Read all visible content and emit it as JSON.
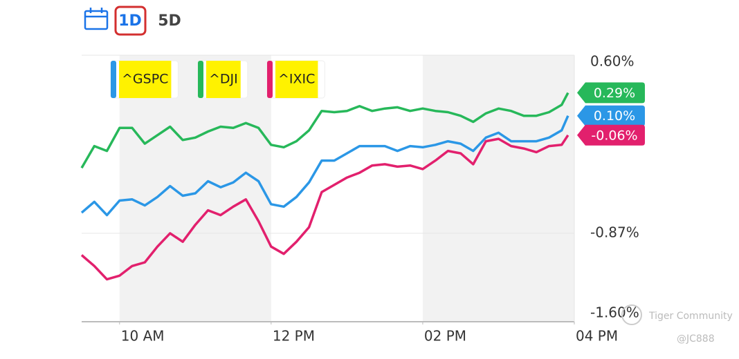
{
  "toolbar": {
    "ranges": [
      "1D",
      "5D"
    ],
    "selected": 0
  },
  "watermark": {
    "brand": "Tiger Community",
    "author": "@JC888"
  },
  "chart_data": {
    "type": "line",
    "x": [
      570,
      580,
      590,
      600,
      610,
      620,
      630,
      640,
      650,
      660,
      670,
      680,
      690,
      700,
      710,
      720,
      730,
      740,
      750,
      760,
      770,
      780,
      790,
      800,
      810,
      820,
      830,
      840,
      850,
      860,
      870,
      880,
      890,
      900,
      910,
      920,
      930,
      940,
      950,
      955
    ],
    "xlim": [
      570,
      960
    ],
    "xticks": [
      {
        "value": 600,
        "label": "10 AM"
      },
      {
        "value": 720,
        "label": "12 PM"
      },
      {
        "value": 840,
        "label": "02 PM"
      },
      {
        "value": 960,
        "label": "04 PM"
      }
    ],
    "ylim": [
      -1.6,
      0.6
    ],
    "yticks": [
      {
        "value": 0.6,
        "label": "0.60%"
      },
      {
        "value": -0.87,
        "label": "-0.87%"
      },
      {
        "value": -1.6,
        "label": "-1.60%"
      }
    ],
    "grid": true,
    "series": [
      {
        "name": "^GSPC",
        "color": "#2b97e6",
        "end_label": "0.10%",
        "values": [
          -0.7,
          -0.61,
          -0.72,
          -0.6,
          -0.59,
          -0.64,
          -0.57,
          -0.48,
          -0.56,
          -0.54,
          -0.44,
          -0.49,
          -0.45,
          -0.37,
          -0.44,
          -0.63,
          -0.65,
          -0.57,
          -0.45,
          -0.27,
          -0.27,
          -0.21,
          -0.15,
          -0.15,
          -0.15,
          -0.19,
          -0.15,
          -0.16,
          -0.14,
          -0.11,
          -0.13,
          -0.19,
          -0.08,
          -0.04,
          -0.11,
          -0.11,
          -0.11,
          -0.08,
          -0.02,
          0.1
        ]
      },
      {
        "name": "^DJI",
        "color": "#27b85a",
        "end_label": "0.29%",
        "values": [
          -0.33,
          -0.15,
          -0.19,
          0.0,
          0.0,
          -0.13,
          -0.06,
          0.01,
          -0.1,
          -0.08,
          -0.03,
          0.01,
          0.0,
          0.04,
          0.0,
          -0.14,
          -0.16,
          -0.11,
          -0.02,
          0.14,
          0.13,
          0.14,
          0.18,
          0.14,
          0.16,
          0.17,
          0.14,
          0.16,
          0.14,
          0.13,
          0.1,
          0.05,
          0.12,
          0.16,
          0.14,
          0.1,
          0.1,
          0.13,
          0.19,
          0.29
        ]
      },
      {
        "name": "^IXIC",
        "color": "#e2206d",
        "end_label": "-0.06%",
        "values": [
          -1.05,
          -1.14,
          -1.25,
          -1.22,
          -1.14,
          -1.11,
          -0.98,
          -0.87,
          -0.94,
          -0.8,
          -0.68,
          -0.72,
          -0.65,
          -0.59,
          -0.77,
          -0.98,
          -1.04,
          -0.94,
          -0.82,
          -0.53,
          -0.47,
          -0.41,
          -0.37,
          -0.31,
          -0.3,
          -0.32,
          -0.31,
          -0.34,
          -0.27,
          -0.19,
          -0.21,
          -0.3,
          -0.11,
          -0.09,
          -0.15,
          -0.17,
          -0.2,
          -0.15,
          -0.14,
          -0.06
        ]
      }
    ]
  }
}
